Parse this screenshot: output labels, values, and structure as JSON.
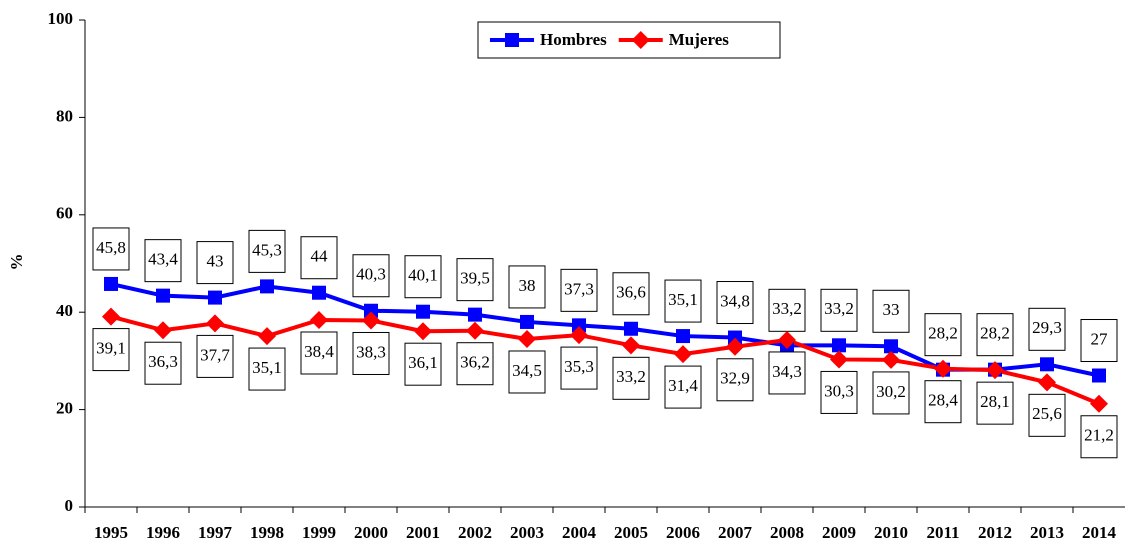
{
  "chart_data": {
    "type": "line",
    "y_label": "%",
    "categories": [
      "1995",
      "1996",
      "1997",
      "1998",
      "1999",
      "2000",
      "2001",
      "2002",
      "2003",
      "2004",
      "2005",
      "2006",
      "2007",
      "2008",
      "2009",
      "2010",
      "2011",
      "2012",
      "2013",
      "2014"
    ],
    "series": [
      {
        "name": "Hombres",
        "color": "#0000ff",
        "marker": "square",
        "values": [
          45.8,
          43.4,
          43,
          45.3,
          44,
          40.3,
          40.1,
          39.5,
          38,
          37.3,
          36.6,
          35.1,
          34.8,
          33.2,
          33.2,
          33,
          28.2,
          28.2,
          29.3,
          27
        ],
        "value_labels": [
          "45,8",
          "43,4",
          "43",
          "45,3",
          "44",
          "40,3",
          "40,1",
          "39,5",
          "38",
          "37,3",
          "36,6",
          "35,1",
          "34,8",
          "33,2",
          "33,2",
          "33",
          "28,2",
          "28,2",
          "29,3",
          "27"
        ]
      },
      {
        "name": "Mujeres",
        "color": "#ff0000",
        "marker": "diamond",
        "values": [
          39.1,
          36.3,
          37.7,
          35.1,
          38.4,
          38.3,
          36.1,
          36.2,
          34.5,
          35.3,
          33.2,
          31.4,
          32.9,
          34.3,
          30.3,
          30.2,
          28.4,
          28.1,
          25.6,
          21.2
        ],
        "value_labels": [
          "39,1",
          "36,3",
          "37,7",
          "35,1",
          "38,4",
          "38,3",
          "36,1",
          "36,2",
          "34,5",
          "35,3",
          "33,2",
          "31,4",
          "32,9",
          "34,3",
          "30,3",
          "30,2",
          "28,4",
          "28,1",
          "25,6",
          "21,2"
        ]
      }
    ],
    "ylim": [
      0,
      100
    ],
    "yticks": [
      0,
      20,
      40,
      60,
      80,
      100
    ],
    "legend": "top"
  }
}
